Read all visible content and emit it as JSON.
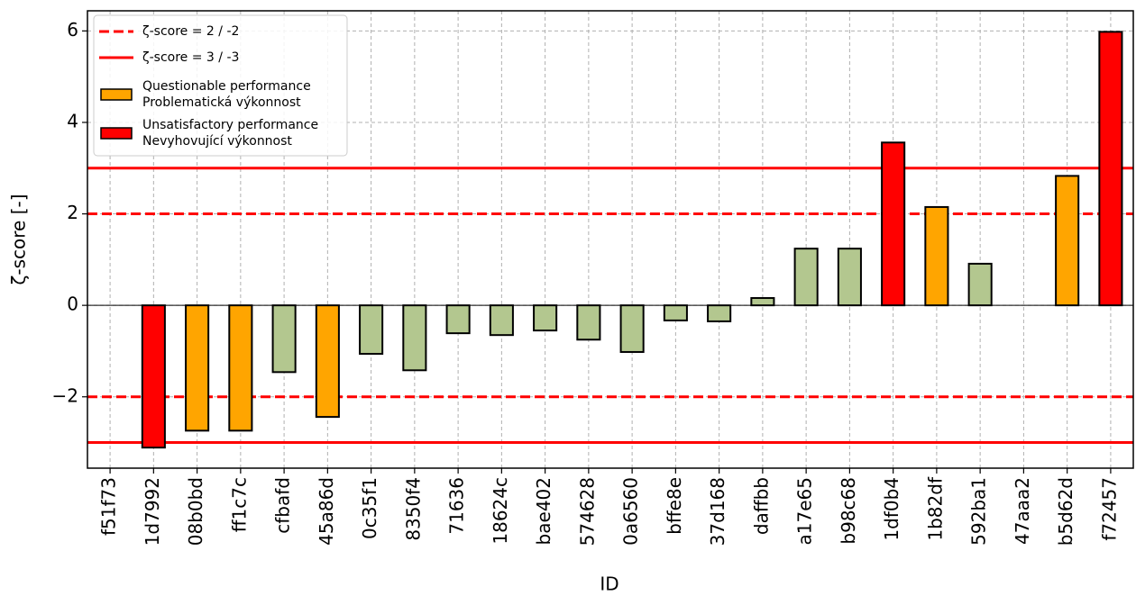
{
  "chart_data": {
    "type": "bar",
    "xlabel": "ID",
    "ylabel": "ζ-score [-]",
    "categories": [
      "f51f73",
      "1d7992",
      "08b0bd",
      "ff1c7c",
      "cfbafd",
      "45a86d",
      "0c35f1",
      "8350f4",
      "71636",
      "18624c",
      "bae402",
      "574628",
      "0a6560",
      "bffe8e",
      "37d168",
      "daffbb",
      "a17e65",
      "b98c68",
      "1df0b4",
      "1b82df",
      "592ba1",
      "47aaa2",
      "b5d62d",
      "f72457"
    ],
    "values": [
      0,
      -3.11,
      -2.74,
      -2.74,
      -1.46,
      -2.44,
      -1.06,
      -1.42,
      -0.61,
      -0.65,
      -0.55,
      -0.75,
      -1.02,
      -0.33,
      -0.35,
      0.16,
      1.24,
      1.24,
      3.56,
      2.15,
      0.91,
      0,
      2.83,
      5.98
    ],
    "colors": [
      "#b3c78f",
      "#ff0000",
      "#ffa500",
      "#ffa500",
      "#b3c78f",
      "#ffa500",
      "#b3c78f",
      "#b3c78f",
      "#b3c78f",
      "#b3c78f",
      "#b3c78f",
      "#b3c78f",
      "#b3c78f",
      "#b3c78f",
      "#b3c78f",
      "#b3c78f",
      "#b3c78f",
      "#b3c78f",
      "#ff0000",
      "#ffa500",
      "#b3c78f",
      "#b3c78f",
      "#ffa500",
      "#ff0000"
    ],
    "ylim": [
      -3.56,
      6.44
    ],
    "yticks": [
      {
        "value": -2,
        "label": "−2"
      },
      0,
      2,
      4,
      6
    ],
    "grid": true,
    "reference_lines": [
      {
        "name": "ζ-score = 2 / -2",
        "values": [
          2,
          -2
        ],
        "style": "dashed",
        "color": "#ff0000"
      },
      {
        "name": "ζ-score = 3 / -3",
        "values": [
          3,
          -3
        ],
        "style": "solid",
        "color": "#ff0000"
      }
    ],
    "legend": {
      "position": "upper left",
      "items": [
        {
          "lines": [
            "Questionable performance",
            "Problematická výkonnost"
          ],
          "color": "#ffa500"
        },
        {
          "lines": [
            "Unsatisfactory performance",
            "Nevyhovující výkonnost"
          ],
          "color": "#ff0000"
        }
      ]
    }
  }
}
